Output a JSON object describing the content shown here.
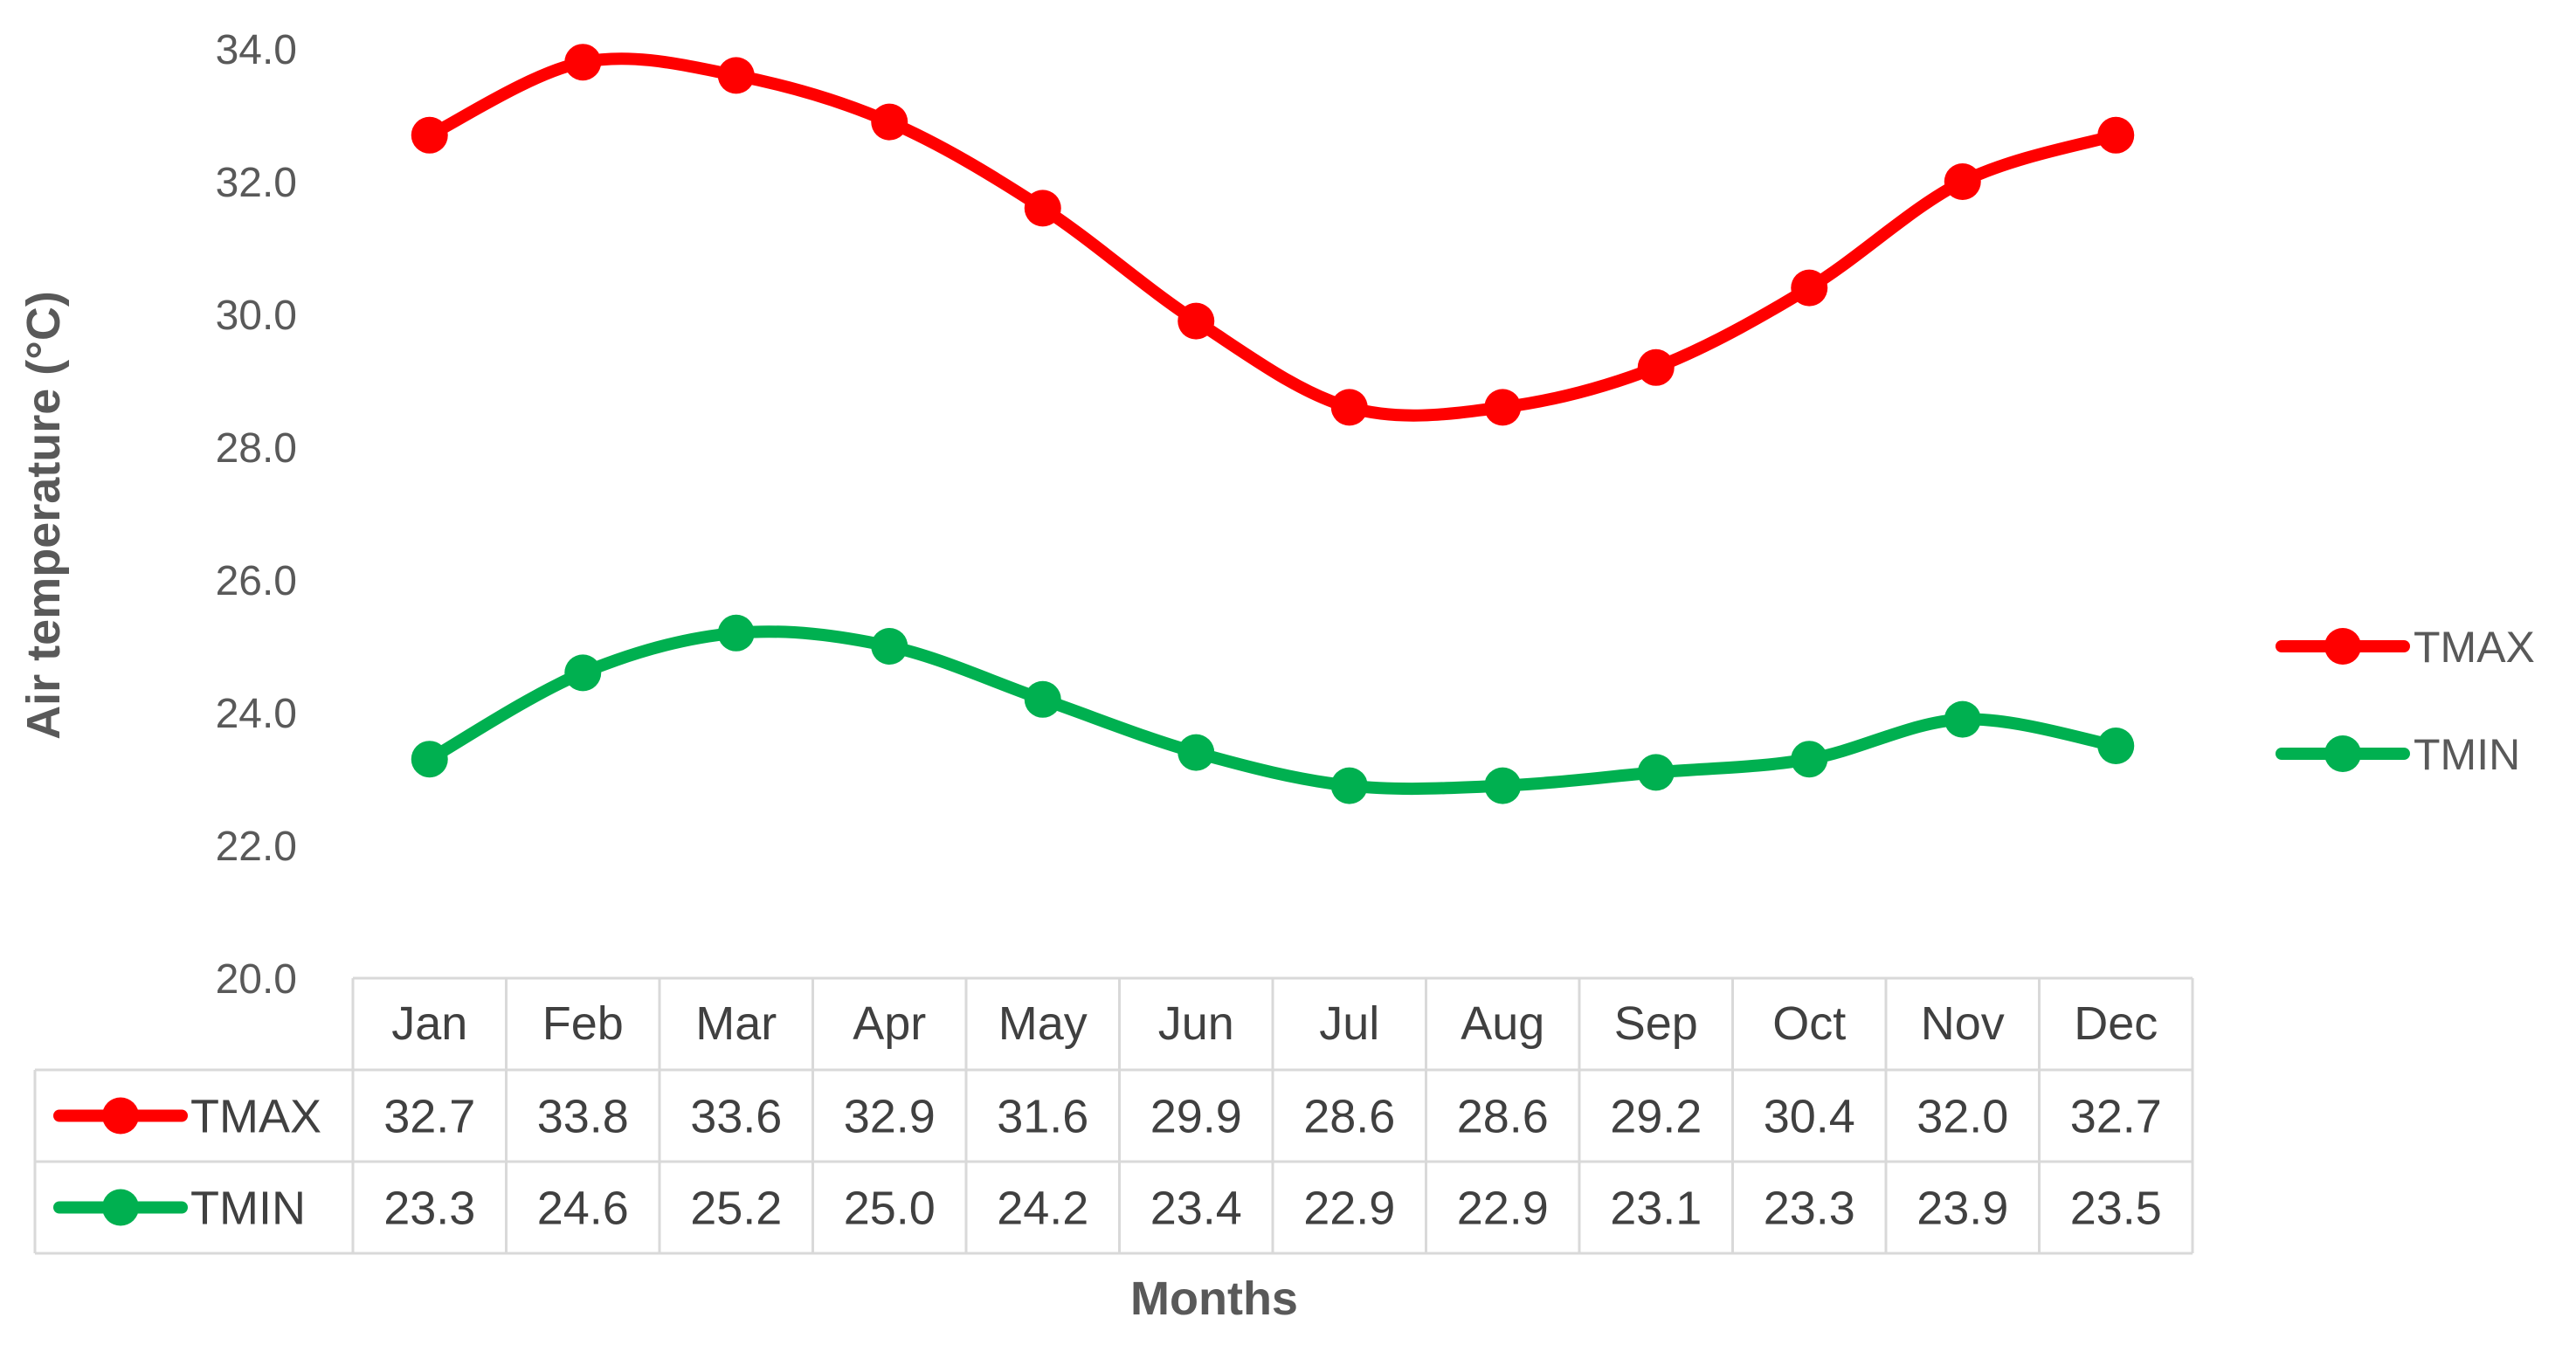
{
  "chart_data": {
    "type": "line",
    "title": "",
    "xlabel": "Months",
    "ylabel": "Air temperature (°C)",
    "ylim": [
      20.0,
      34.0
    ],
    "yticks": [
      "20.0",
      "22.0",
      "24.0",
      "26.0",
      "28.0",
      "30.0",
      "32.0",
      "34.0"
    ],
    "categories": [
      "Jan",
      "Feb",
      "Mar",
      "Apr",
      "May",
      "Jun",
      "Jul",
      "Aug",
      "Sep",
      "Oct",
      "Nov",
      "Dec"
    ],
    "series": [
      {
        "name": "TMAX",
        "color": "#ff0000",
        "values": [
          32.7,
          33.8,
          33.6,
          32.9,
          31.6,
          29.9,
          28.6,
          28.6,
          29.2,
          30.4,
          32.0,
          32.7
        ],
        "labels": [
          "32.7",
          "33.8",
          "33.6",
          "32.9",
          "31.6",
          "29.9",
          "28.6",
          "28.6",
          "29.2",
          "30.4",
          "32.0",
          "32.7"
        ]
      },
      {
        "name": "TMIN",
        "color": "#00b050",
        "values": [
          23.3,
          24.6,
          25.2,
          25.0,
          24.2,
          23.4,
          22.9,
          22.9,
          23.1,
          23.3,
          23.9,
          23.5
        ],
        "labels": [
          "23.3",
          "24.6",
          "25.2",
          "25.0",
          "24.2",
          "23.4",
          "22.9",
          "22.9",
          "23.1",
          "23.3",
          "23.9",
          "23.5"
        ]
      }
    ],
    "grid": false,
    "legend": "right",
    "data_table": true
  }
}
